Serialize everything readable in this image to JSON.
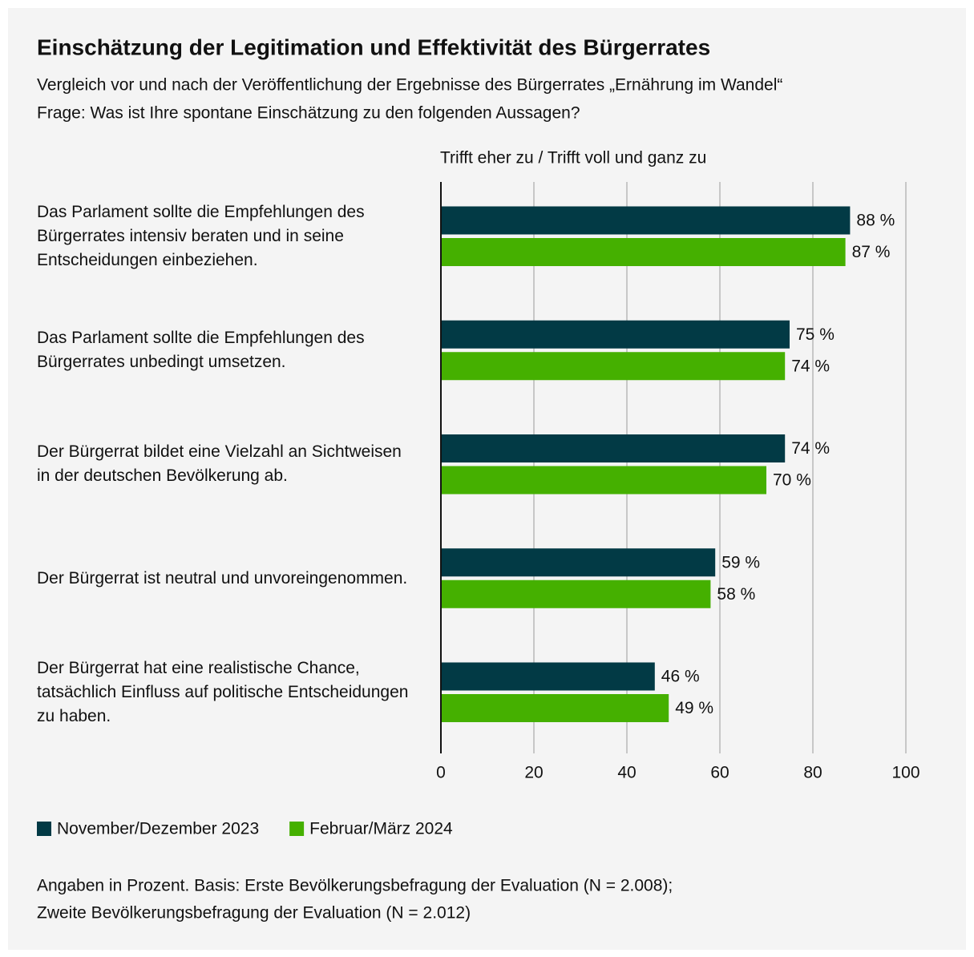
{
  "chart_data": {
    "type": "bar",
    "orientation": "horizontal",
    "title": "Einschätzung der Legitimation und Effektivität des Bürgerrates",
    "subtitle": [
      "Vergleich vor und nach der Veröffentlichung der Ergebnisse des Bürgerrates „Ernährung im Wandel“",
      "Frage: Was ist Ihre spontane Einschätzung zu den folgenden Aussagen?"
    ],
    "axis_title": "Trifft eher zu / Trifft voll und ganz zu",
    "categories": [
      "Das Parlament sollte die Empfehlungen des Bürgerrates intensiv beraten und in seine Entscheidungen einbeziehen.",
      "Das Parlament sollte die Empfehlungen des Bürgerrates unbedingt umsetzen.",
      "Der Bürgerrat bildet eine Vielzahl an Sichtweisen in der deutschen Bevölkerung ab.",
      "Der Bürgerrat ist neutral und unvoreingenommen.",
      "Der Bürgerrat hat eine realistische Chance, tatsächlich Einfluss auf politische Entscheidungen zu haben."
    ],
    "series": [
      {
        "name": "November/Dezember 2023",
        "color": "#023a45",
        "values": [
          88,
          75,
          74,
          59,
          46
        ],
        "value_labels": [
          "88 %",
          "75 %",
          "74 %",
          "59 %",
          "46 %"
        ]
      },
      {
        "name": "Februar/März 2024",
        "color": "#45b000",
        "values": [
          87,
          74,
          70,
          58,
          49
        ],
        "value_labels": [
          "87 %",
          "74 %",
          "70 %",
          "58 %",
          "49 %"
        ]
      }
    ],
    "xlim": [
      0,
      100
    ],
    "xticks": [
      0,
      20,
      40,
      60,
      80,
      100
    ],
    "grid": true,
    "legend": "bottom-left",
    "notes": [
      "Angaben in Prozent. Basis: Erste Bevölkerungsbefragung der Evaluation (N = 2.008);",
      "Zweite Bevölkerungsbefragung der Evaluation (N = 2.012)"
    ]
  }
}
